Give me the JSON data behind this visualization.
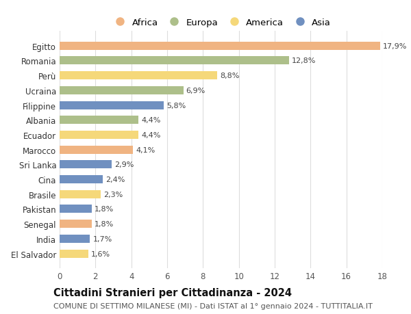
{
  "countries": [
    "Egitto",
    "Romania",
    "Perù",
    "Ucraina",
    "Filippine",
    "Albania",
    "Ecuador",
    "Marocco",
    "Sri Lanka",
    "Cina",
    "Brasile",
    "Pakistan",
    "Senegal",
    "India",
    "El Salvador"
  ],
  "values": [
    17.9,
    12.8,
    8.8,
    6.9,
    5.8,
    4.4,
    4.4,
    4.1,
    2.9,
    2.4,
    2.3,
    1.8,
    1.8,
    1.7,
    1.6
  ],
  "labels": [
    "17,9%",
    "12,8%",
    "8,8%",
    "6,9%",
    "5,8%",
    "4,4%",
    "4,4%",
    "4,1%",
    "2,9%",
    "2,4%",
    "2,3%",
    "1,8%",
    "1,8%",
    "1,7%",
    "1,6%"
  ],
  "continents": [
    "Africa",
    "Europa",
    "America",
    "Europa",
    "Asia",
    "Europa",
    "America",
    "Africa",
    "Asia",
    "Asia",
    "America",
    "Asia",
    "Africa",
    "Asia",
    "America"
  ],
  "continent_colors": {
    "Africa": "#F0B482",
    "Europa": "#ADBF8A",
    "America": "#F5D87A",
    "Asia": "#7090C0"
  },
  "legend_order": [
    "Africa",
    "Europa",
    "America",
    "Asia"
  ],
  "xlim": [
    0,
    18
  ],
  "xticks": [
    0,
    2,
    4,
    6,
    8,
    10,
    12,
    14,
    16,
    18
  ],
  "title": "Cittadini Stranieri per Cittadinanza - 2024",
  "subtitle": "COMUNE DI SETTIMO MILANESE (MI) - Dati ISTAT al 1° gennaio 2024 - TUTTITALIA.IT",
  "background_color": "#ffffff",
  "grid_color": "#dddddd",
  "bar_height": 0.55,
  "title_fontsize": 10.5,
  "subtitle_fontsize": 8,
  "tick_fontsize": 8.5,
  "label_fontsize": 8,
  "legend_fontsize": 9.5
}
